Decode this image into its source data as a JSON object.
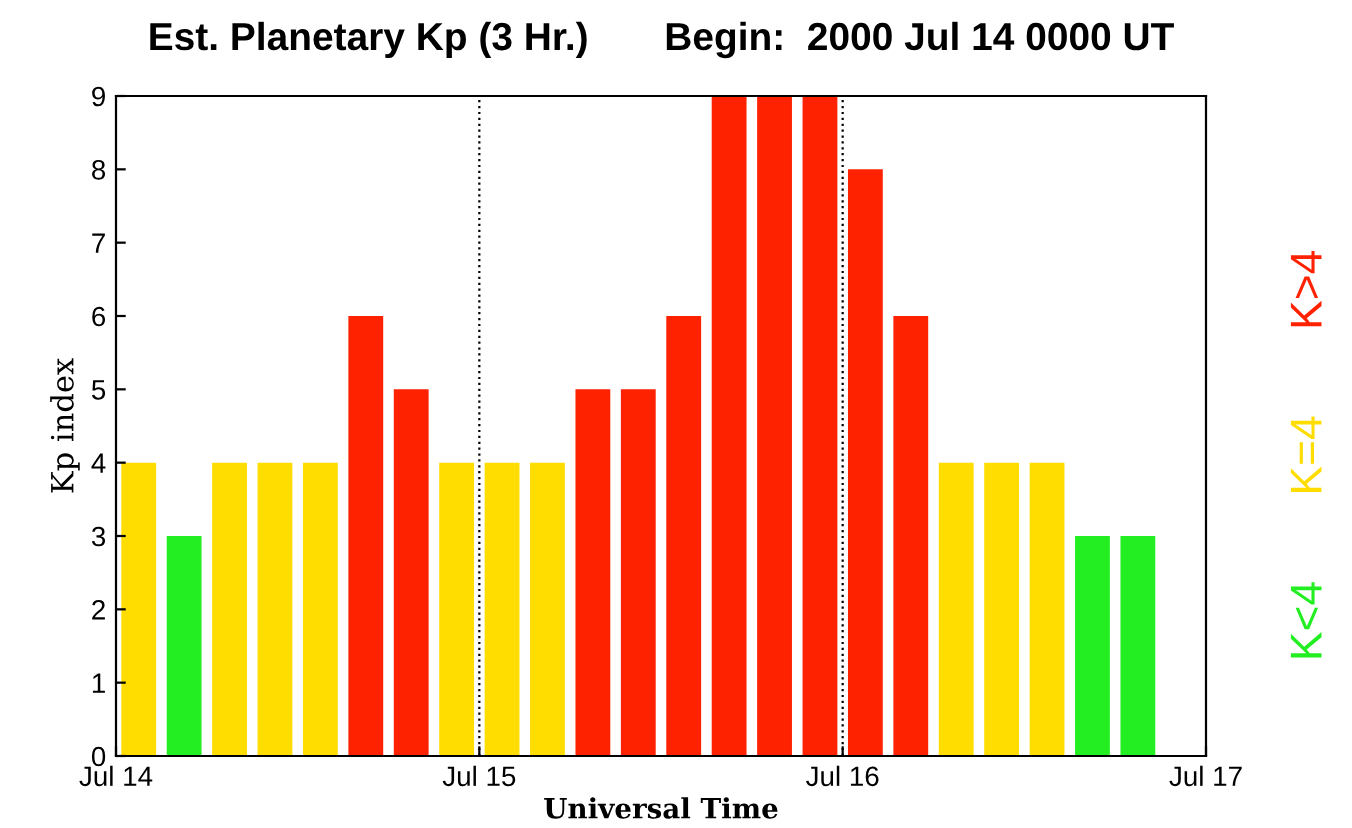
{
  "chart_data": {
    "type": "bar",
    "title": "Est. Planetary Kp (3 Hr.)       Begin:  2000 Jul 14 0000 UT",
    "xlabel": "Universal Time",
    "ylabel": "Kp index",
    "x": [
      "2000-07-14T01:30",
      "2000-07-14T04:30",
      "2000-07-14T07:30",
      "2000-07-14T10:30",
      "2000-07-14T13:30",
      "2000-07-14T16:30",
      "2000-07-14T19:30",
      "2000-07-14T22:30",
      "2000-07-15T01:30",
      "2000-07-15T04:30",
      "2000-07-15T07:30",
      "2000-07-15T10:30",
      "2000-07-15T13:30",
      "2000-07-15T16:30",
      "2000-07-15T19:30",
      "2000-07-15T22:30",
      "2000-07-16T01:30",
      "2000-07-16T04:30",
      "2000-07-16T07:30",
      "2000-07-16T10:30",
      "2000-07-16T13:30",
      "2000-07-16T16:30",
      "2000-07-16T19:30"
    ],
    "series": [
      {
        "name": "K<4",
        "color": "#22ee22",
        "values": [
          null,
          3,
          null,
          null,
          null,
          null,
          null,
          null,
          null,
          null,
          null,
          null,
          null,
          null,
          null,
          null,
          null,
          null,
          null,
          null,
          null,
          3,
          3
        ]
      },
      {
        "name": "K=4",
        "color": "#ffdd00",
        "values": [
          4,
          null,
          4,
          4,
          4,
          null,
          null,
          4,
          4,
          4,
          null,
          null,
          null,
          null,
          null,
          null,
          null,
          null,
          4,
          4,
          4,
          null,
          null
        ]
      },
      {
        "name": "K>4",
        "color": "#ff2200",
        "values": [
          null,
          null,
          null,
          null,
          null,
          6,
          5,
          null,
          null,
          null,
          5,
          5,
          6,
          9,
          9,
          9,
          8,
          6,
          null,
          null,
          null,
          null,
          null
        ]
      }
    ],
    "xlim": [
      "2000-07-14",
      "2000-07-17"
    ],
    "xticks": [
      {
        "value": "2000-07-14",
        "label": "Jul 14"
      },
      {
        "value": "2000-07-15",
        "label": "Jul 15"
      },
      {
        "value": "2000-07-16",
        "label": "Jul 16"
      },
      {
        "value": "2000-07-17",
        "label": "Jul 17"
      }
    ],
    "ylim": [
      0,
      9
    ],
    "yticks": [
      0,
      1,
      2,
      3,
      4,
      5,
      6,
      7,
      8,
      9
    ],
    "ref_lines": [
      {
        "axis": "x",
        "value": "2000-07-15",
        "color": "#000000",
        "line_style": "dotted"
      },
      {
        "axis": "x",
        "value": "2000-07-16",
        "color": "#000000",
        "line_style": "dotted"
      }
    ],
    "grid": false,
    "legend": "right"
  }
}
